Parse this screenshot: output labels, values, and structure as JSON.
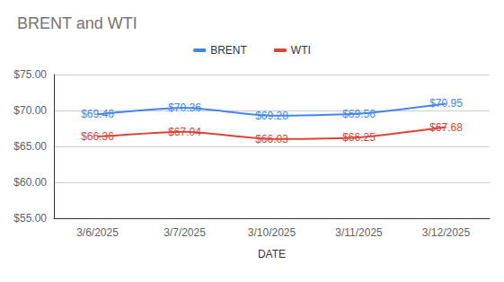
{
  "chart_data": {
    "type": "line",
    "title": "BRENT and WTI",
    "x_label": "DATE",
    "categories": [
      "3/6/2025",
      "3/7/2025",
      "3/10/2025",
      "3/11/2025",
      "3/12/2025"
    ],
    "series": [
      {
        "name": "BRENT",
        "color": "#4285f4",
        "values": [
          69.46,
          70.36,
          69.28,
          69.56,
          70.95
        ],
        "value_labels": [
          "$69.46",
          "$70.36",
          "$69.28",
          "$69.56",
          "$70.95"
        ]
      },
      {
        "name": "WTI",
        "color": "#db4437",
        "values": [
          66.36,
          67.04,
          66.03,
          66.25,
          67.68
        ],
        "value_labels": [
          "$66.36",
          "$67.04",
          "$66.03",
          "$66.25",
          "$67.68"
        ]
      }
    ],
    "ylim": [
      55,
      75
    ],
    "yticks": [
      {
        "value": 55,
        "label": "$55.00"
      },
      {
        "value": 60,
        "label": "$60.00"
      },
      {
        "value": 65,
        "label": "$65.00"
      },
      {
        "value": 70,
        "label": "$70.00"
      },
      {
        "value": 75,
        "label": "$75.00"
      }
    ],
    "grid": true,
    "legend": "top",
    "data_labels": true
  }
}
